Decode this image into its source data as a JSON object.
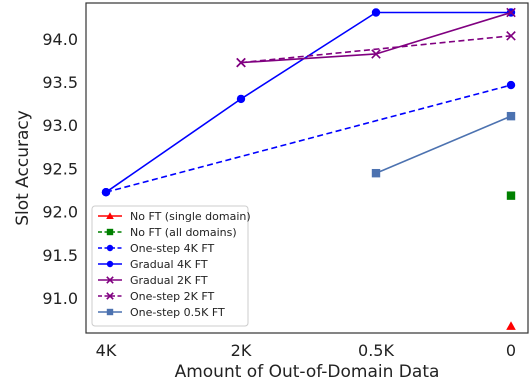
{
  "chart_data": {
    "type": "line",
    "title": "",
    "xlabel": "Amount of Out-of-Domain Data",
    "ylabel": "Slot Accuracy",
    "categories": [
      "4K",
      "2K",
      "0.5K",
      "0"
    ],
    "yticks": [
      "91.0",
      "91.5",
      "92.0",
      "92.5",
      "93.0",
      "93.5",
      "94.0"
    ],
    "ylim": [
      90.6,
      94.42
    ],
    "grid": false,
    "legend_position": "lower-left",
    "series": [
      {
        "name": "No FT (single domain)",
        "color": "#ff0000",
        "marker": "triangle",
        "dash": "solid",
        "values": [
          null,
          null,
          null,
          90.68
        ]
      },
      {
        "name": "No FT (all domains)",
        "color": "#008000",
        "marker": "square",
        "dash": "dashed",
        "values": [
          null,
          null,
          null,
          92.19
        ]
      },
      {
        "name": "One-step 4K FT",
        "color": "#0000ff",
        "marker": "circle",
        "dash": "dashed",
        "values": [
          92.23,
          null,
          null,
          93.47
        ]
      },
      {
        "name": "Gradual 4K FT",
        "color": "#0000ff",
        "marker": "circle",
        "dash": "solid",
        "values": [
          92.23,
          93.31,
          94.31,
          94.31
        ]
      },
      {
        "name": "Gradual 2K FT",
        "color": "#800080",
        "marker": "x",
        "dash": "solid",
        "values": [
          null,
          93.73,
          93.83,
          94.31
        ]
      },
      {
        "name": "One-step 2K FT",
        "color": "#800080",
        "marker": "x",
        "dash": "dashed",
        "values": [
          null,
          93.73,
          null,
          94.04
        ]
      },
      {
        "name": "One-step 0.5K FT",
        "color": "#4c72b0",
        "marker": "square",
        "dash": "solid",
        "values": [
          null,
          null,
          92.45,
          93.11
        ]
      }
    ]
  }
}
